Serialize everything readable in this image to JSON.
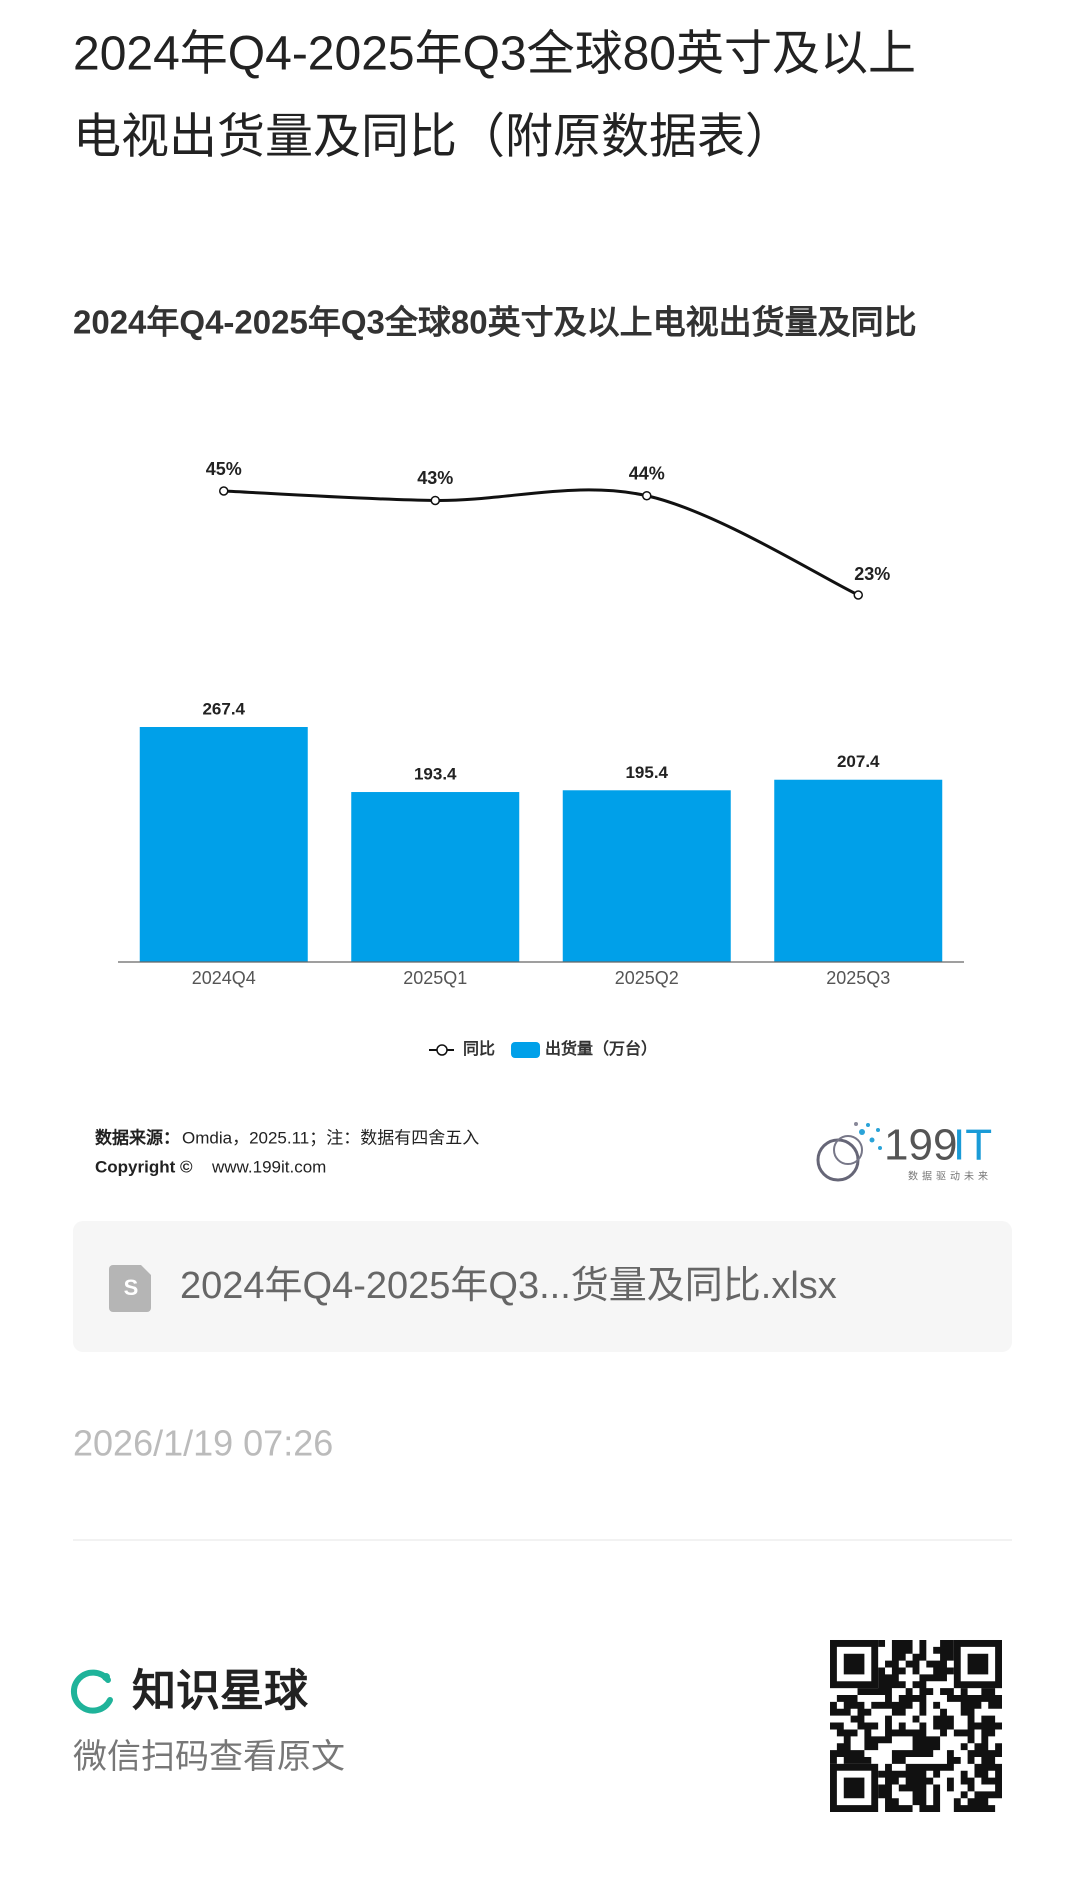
{
  "header": {
    "title_lines": [
      "2024年Q4-2025年Q3全球80英寸及以上",
      "电视出货量及同比（附原数据表）"
    ]
  },
  "chart_data": {
    "type": "bar",
    "title": "2024年Q4-2025年Q3全球80英寸及以上电视出货量及同比",
    "categories": [
      "2024Q4",
      "2025Q1",
      "2025Q2",
      "2025Q3"
    ],
    "series": [
      {
        "name": "出货量（万台）",
        "type": "bar",
        "color": "#00a0e9",
        "values": [
          267.4,
          193.4,
          195.4,
          207.4
        ]
      },
      {
        "name": "同比",
        "type": "line",
        "axis": "y2",
        "color": "#111111",
        "values": [
          45,
          43,
          44,
          23
        ],
        "value_labels": [
          "45%",
          "43%",
          "44%",
          "23%"
        ]
      }
    ],
    "legend": "bottom"
  },
  "source": {
    "label": "数据来源：",
    "text": "Omdia，2025.11；注：数据有四舍五入"
  },
  "copyright": {
    "label": "Copyright ©",
    "text": "www.199it.com"
  },
  "logo": {
    "number": "199",
    "letters": "IT",
    "tagline": "数据驱动未来"
  },
  "attachment": {
    "filename": "2024年Q4-2025年Q3...货量及同比.xlsx"
  },
  "date": "2026/1/19 07:26",
  "footer": {
    "brand": "知识星球",
    "hint": "微信扫码查看原文"
  }
}
